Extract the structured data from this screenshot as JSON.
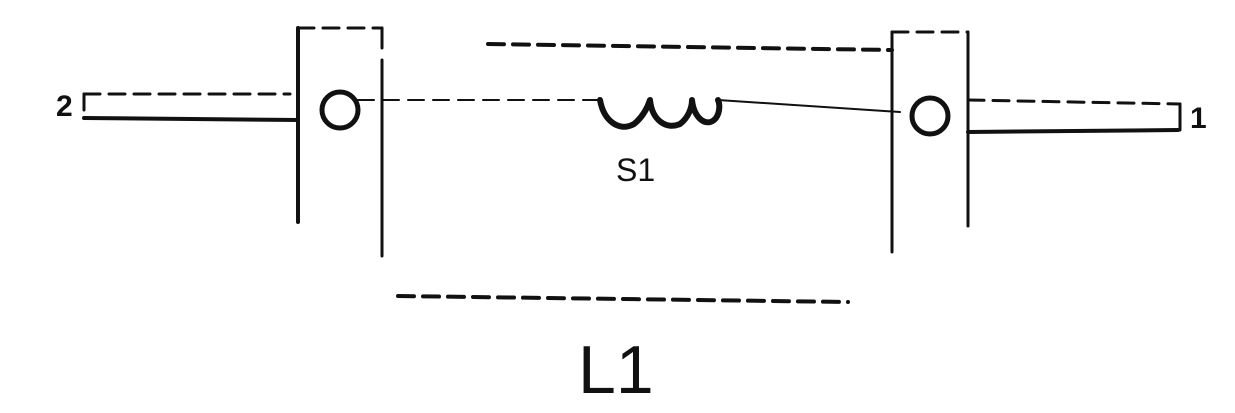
{
  "diagram": {
    "pin_left_label": "2",
    "pin_right_label": "1",
    "coil_label": "S1",
    "component_label": "L1",
    "colors": {
      "ink": "#111111",
      "background": "#ffffff"
    }
  }
}
